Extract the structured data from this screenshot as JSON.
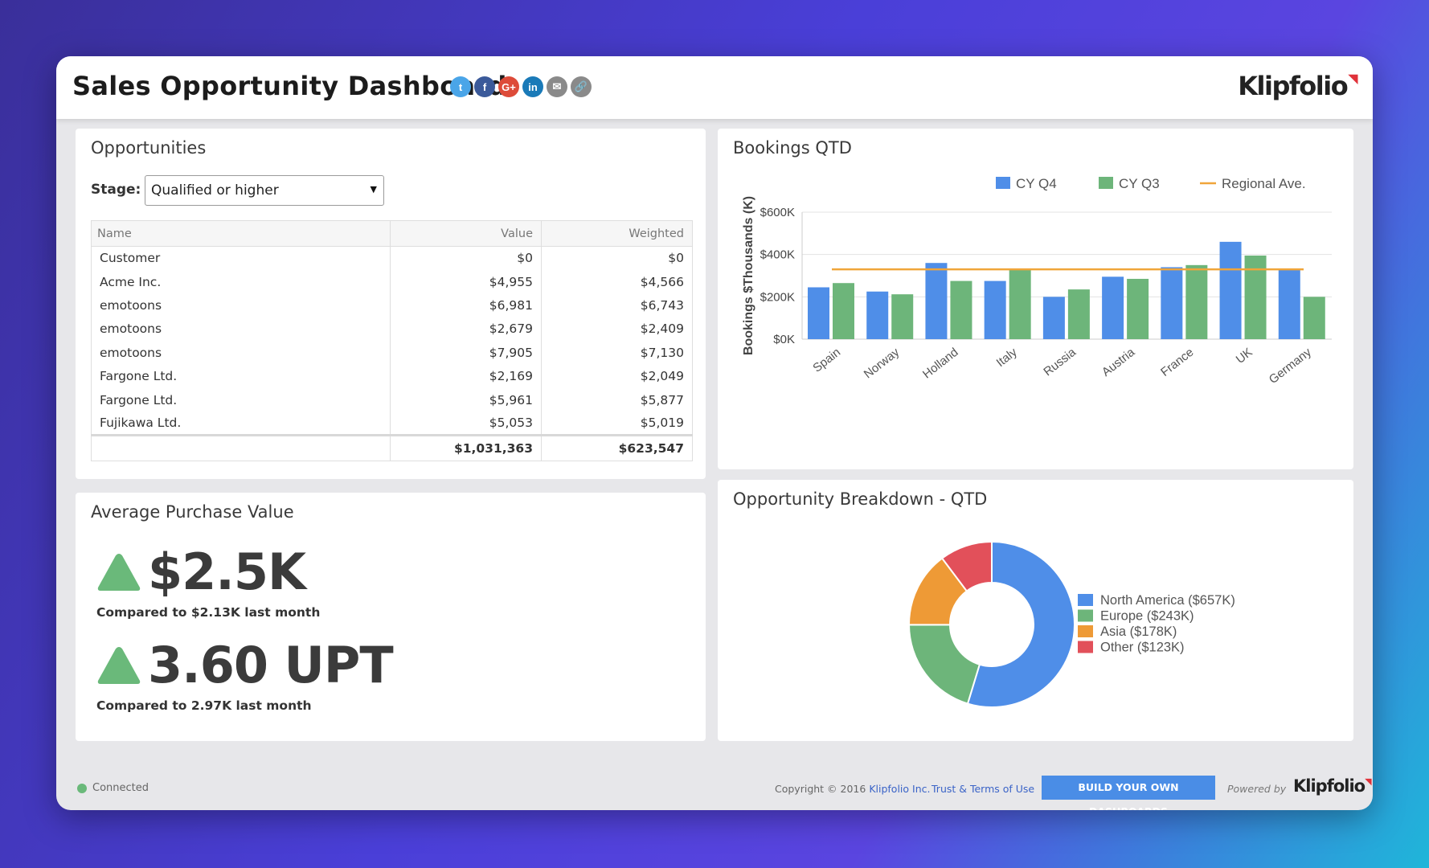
{
  "header": {
    "title": "Sales Opportunity Dashboard",
    "share_icons": [
      {
        "name": "twitter-icon",
        "glyph": "t",
        "color": "#4aa5e8"
      },
      {
        "name": "facebook-icon",
        "glyph": "f",
        "color": "#3b5a9a"
      },
      {
        "name": "google-plus-icon",
        "glyph": "G+",
        "color": "#dd4b39"
      },
      {
        "name": "linkedin-icon",
        "glyph": "in",
        "color": "#1a7ab8"
      },
      {
        "name": "email-icon",
        "glyph": "✉",
        "color": "#8a8a8a"
      },
      {
        "name": "link-icon",
        "glyph": "🔗",
        "color": "#8a8a8a"
      }
    ],
    "logo": "Klipfolio"
  },
  "opportunities": {
    "title": "Opportunities",
    "stage_label": "Stage:",
    "stage_value": "Qualified or higher",
    "columns": [
      "Name",
      "Value",
      "Weighted"
    ],
    "rows": [
      [
        "Customer",
        "$0",
        "$0"
      ],
      [
        "Acme Inc.",
        "$4,955",
        "$4,566"
      ],
      [
        "emotoons",
        "$6,981",
        "$6,743"
      ],
      [
        "emotoons",
        "$2,679",
        "$2,409"
      ],
      [
        "emotoons",
        "$7,905",
        "$7,130"
      ],
      [
        "Fargone Ltd.",
        "$2,169",
        "$2,049"
      ],
      [
        "Fargone Ltd.",
        "$5,961",
        "$5,877"
      ],
      [
        "Fujikawa Ltd.",
        "$5,053",
        "$5,019"
      ]
    ],
    "totals": [
      "",
      "$1,031,363",
      "$623,547"
    ]
  },
  "bookings": {
    "title": "Bookings QTD",
    "chart_data": {
      "type": "bar",
      "categories": [
        "Spain",
        "Norway",
        "Holland",
        "Italy",
        "Russia",
        "Austria",
        "France",
        "UK",
        "Germany"
      ],
      "series": [
        {
          "name": "CY Q4",
          "color": "#4f8ee8",
          "values": [
            245,
            225,
            360,
            275,
            200,
            295,
            340,
            460,
            330
          ]
        },
        {
          "name": "CY Q3",
          "color": "#6db57a",
          "values": [
            265,
            212,
            275,
            330,
            235,
            285,
            350,
            395,
            200
          ]
        }
      ],
      "reference_line": {
        "name": "Regional Ave.",
        "color": "#f0a53a",
        "value": 330
      },
      "ylabel": "Bookings $Thousands (K)",
      "yticks": [
        "$0K",
        "$200K",
        "$400K",
        "$600K"
      ],
      "ylim": [
        0,
        600
      ],
      "legend": "top-right",
      "grid": true
    }
  },
  "avg_purchase": {
    "title": "Average Purchase Value",
    "metric1_value": "$2.5K",
    "metric1_compare": "Compared to $2.13K last month",
    "metric2_value": "3.60 UPT",
    "metric2_compare": "Compared to 2.97K last month",
    "trend_color": "#6ab97a"
  },
  "breakdown": {
    "title": "Opportunity Breakdown - QTD",
    "chart_data": {
      "type": "pie",
      "donut": true,
      "slices": [
        {
          "label": "North America ($657K)",
          "value": 657,
          "color": "#4f8ee8"
        },
        {
          "label": "Europe ($243K)",
          "value": 243,
          "color": "#6db57a"
        },
        {
          "label": "Asia ($178K)",
          "value": 178,
          "color": "#ee9a36"
        },
        {
          "label": "Other ($123K)",
          "value": 123,
          "color": "#e2505a"
        }
      ],
      "legend": "right"
    }
  },
  "footer": {
    "status": "Connected",
    "copyright_prefix": "Copyright © 2016",
    "copyright_link": "Klipfolio Inc.",
    "terms": "Trust & Terms of Use",
    "build_button": "BUILD YOUR OWN DASHBOARDS",
    "powered_by": "Powered by",
    "logo": "Klipfolio"
  }
}
